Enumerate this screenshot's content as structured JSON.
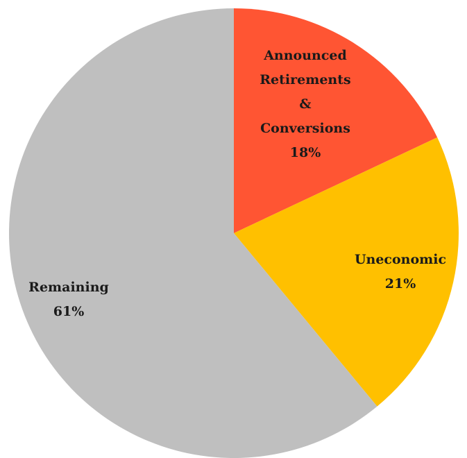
{
  "chart_data": {
    "type": "pie",
    "slices": [
      {
        "label": [
          "Announced",
          "Retirements",
          "&",
          "Conversions"
        ],
        "percent_label": "18%",
        "value": 18,
        "color": "#FF5533"
      },
      {
        "label": [
          "Uneconomic"
        ],
        "percent_label": "21%",
        "value": 21,
        "color": "#FFC000"
      },
      {
        "label": [
          "Remaining"
        ],
        "percent_label": "61%",
        "value": 61,
        "color": "#BFBFBF"
      }
    ],
    "start_angle": "12 o'clock",
    "direction": "clockwise",
    "legend": "none"
  }
}
